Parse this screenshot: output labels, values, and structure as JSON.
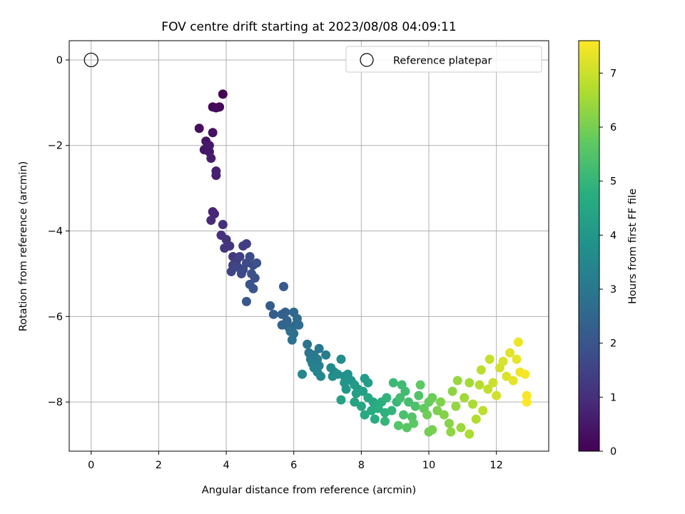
{
  "chart_data": {
    "type": "scatter",
    "title": "FOV centre drift starting at 2023/08/08 04:09:11",
    "xlabel": "Angular distance from reference (arcmin)",
    "ylabel": "Rotation from reference (arcmin)",
    "xlim": [
      -0.65,
      13.55
    ],
    "ylim": [
      -9.15,
      0.45
    ],
    "xticks": [
      "0",
      "2",
      "4",
      "6",
      "8",
      "10",
      "12"
    ],
    "yticks": [
      "0",
      "−2",
      "−4",
      "−6",
      "−8"
    ],
    "grid": true,
    "legend": {
      "position": "top-right",
      "entries": [
        "Reference platepar"
      ]
    },
    "reference_point": {
      "x": 0,
      "y": 0
    },
    "colorbar": {
      "label": "Hours from first FF file",
      "range": [
        0,
        7.6
      ],
      "ticks": [
        "0",
        "1",
        "2",
        "3",
        "4",
        "5",
        "6",
        "7"
      ],
      "colormap": "viridis"
    },
    "series": [
      {
        "points": [
          [
            3.9,
            -0.8,
            0.0
          ],
          [
            3.6,
            -1.1,
            0.1
          ],
          [
            3.8,
            -1.1,
            0.15
          ],
          [
            3.7,
            -1.12,
            0.2
          ],
          [
            3.2,
            -1.6,
            0.3
          ],
          [
            3.6,
            -1.7,
            0.35
          ],
          [
            3.4,
            -1.9,
            0.4
          ],
          [
            3.35,
            -2.1,
            0.45
          ],
          [
            3.5,
            -2.15,
            0.5
          ],
          [
            3.5,
            -2.0,
            0.55
          ],
          [
            3.55,
            -2.3,
            0.6
          ],
          [
            3.7,
            -2.6,
            0.65
          ],
          [
            3.7,
            -2.7,
            0.7
          ],
          [
            3.6,
            -3.55,
            0.8
          ],
          [
            3.65,
            -3.6,
            0.85
          ],
          [
            3.55,
            -3.75,
            0.9
          ],
          [
            3.9,
            -3.85,
            1.0
          ],
          [
            3.85,
            -4.1,
            1.05
          ],
          [
            4.0,
            -4.2,
            1.1
          ],
          [
            4.1,
            -4.35,
            1.15
          ],
          [
            3.95,
            -4.4,
            1.2
          ],
          [
            4.2,
            -4.6,
            1.25
          ],
          [
            4.3,
            -4.7,
            1.3
          ],
          [
            4.5,
            -4.35,
            1.35
          ],
          [
            4.6,
            -4.3,
            1.4
          ],
          [
            4.4,
            -4.6,
            1.45
          ],
          [
            4.2,
            -4.8,
            1.5
          ],
          [
            4.15,
            -4.95,
            1.55
          ],
          [
            4.35,
            -4.85,
            1.6
          ],
          [
            4.5,
            -4.9,
            1.65
          ],
          [
            4.45,
            -5.0,
            1.7
          ],
          [
            4.6,
            -4.75,
            1.72
          ],
          [
            4.7,
            -4.6,
            1.75
          ],
          [
            4.8,
            -4.8,
            1.8
          ],
          [
            4.9,
            -4.75,
            1.85
          ],
          [
            4.75,
            -5.0,
            1.88
          ],
          [
            4.85,
            -5.1,
            1.9
          ],
          [
            4.7,
            -5.25,
            1.95
          ],
          [
            4.8,
            -5.35,
            2.0
          ],
          [
            4.6,
            -5.65,
            2.05
          ],
          [
            5.7,
            -5.3,
            2.1
          ],
          [
            5.3,
            -5.75,
            2.2
          ],
          [
            5.4,
            -5.95,
            2.25
          ],
          [
            5.65,
            -5.95,
            2.3
          ],
          [
            5.75,
            -5.9,
            2.35
          ],
          [
            5.8,
            -6.1,
            2.4
          ],
          [
            5.65,
            -6.2,
            2.45
          ],
          [
            5.85,
            -6.25,
            2.5
          ],
          [
            6.0,
            -5.9,
            2.55
          ],
          [
            6.1,
            -6.05,
            2.6
          ],
          [
            6.05,
            -6.2,
            2.65
          ],
          [
            6.15,
            -6.2,
            2.7
          ],
          [
            5.9,
            -6.35,
            2.75
          ],
          [
            6.0,
            -6.4,
            2.8
          ],
          [
            5.95,
            -6.55,
            2.85
          ],
          [
            6.4,
            -6.65,
            2.9
          ],
          [
            6.45,
            -6.85,
            2.95
          ],
          [
            6.75,
            -6.75,
            3.0
          ],
          [
            6.6,
            -6.9,
            3.05
          ],
          [
            6.5,
            -7.0,
            3.1
          ],
          [
            6.7,
            -7.0,
            3.15
          ],
          [
            6.95,
            -6.9,
            3.2
          ],
          [
            6.55,
            -7.1,
            3.25
          ],
          [
            6.75,
            -7.15,
            3.3
          ],
          [
            6.6,
            -7.2,
            3.35
          ],
          [
            6.7,
            -7.3,
            3.4
          ],
          [
            6.25,
            -7.35,
            3.45
          ],
          [
            6.8,
            -7.4,
            3.5
          ],
          [
            7.1,
            -7.2,
            3.55
          ],
          [
            7.2,
            -7.3,
            3.6
          ],
          [
            7.4,
            -7.0,
            3.65
          ],
          [
            7.15,
            -7.4,
            3.7
          ],
          [
            7.3,
            -7.35,
            3.75
          ],
          [
            7.5,
            -7.4,
            3.8
          ],
          [
            7.6,
            -7.35,
            3.85
          ],
          [
            7.7,
            -7.5,
            3.9
          ],
          [
            7.5,
            -7.55,
            3.95
          ],
          [
            7.55,
            -7.7,
            4.0
          ],
          [
            7.8,
            -7.6,
            4.05
          ],
          [
            7.9,
            -7.7,
            4.1
          ],
          [
            8.1,
            -7.45,
            4.15
          ],
          [
            8.2,
            -7.55,
            4.2
          ],
          [
            7.85,
            -7.8,
            4.25
          ],
          [
            8.05,
            -7.75,
            4.3
          ],
          [
            7.4,
            -7.95,
            4.35
          ],
          [
            7.8,
            -8.0,
            4.4
          ],
          [
            8.0,
            -8.1,
            4.45
          ],
          [
            8.2,
            -7.9,
            4.5
          ],
          [
            8.35,
            -8.0,
            4.55
          ],
          [
            8.1,
            -8.3,
            4.6
          ],
          [
            8.3,
            -8.2,
            4.65
          ],
          [
            8.4,
            -8.4,
            4.7
          ],
          [
            8.5,
            -8.15,
            4.75
          ],
          [
            8.6,
            -8.0,
            4.8
          ],
          [
            8.7,
            -8.25,
            4.85
          ],
          [
            8.75,
            -7.9,
            4.9
          ],
          [
            8.9,
            -8.2,
            4.95
          ],
          [
            8.7,
            -8.45,
            5.0
          ],
          [
            9.05,
            -8.0,
            5.05
          ],
          [
            8.95,
            -7.55,
            5.1
          ],
          [
            9.2,
            -7.6,
            5.15
          ],
          [
            9.3,
            -7.75,
            5.2
          ],
          [
            9.15,
            -7.9,
            5.25
          ],
          [
            9.4,
            -8.0,
            5.3
          ],
          [
            9.25,
            -8.3,
            5.35
          ],
          [
            9.6,
            -8.1,
            5.4
          ],
          [
            9.7,
            -7.85,
            5.45
          ],
          [
            9.5,
            -8.35,
            5.5
          ],
          [
            9.1,
            -8.55,
            5.55
          ],
          [
            9.35,
            -8.6,
            5.6
          ],
          [
            9.55,
            -8.5,
            5.65
          ],
          [
            9.75,
            -7.6,
            5.7
          ],
          [
            9.85,
            -8.15,
            5.75
          ],
          [
            10.0,
            -8.0,
            5.8
          ],
          [
            10.1,
            -7.9,
            5.85
          ],
          [
            9.95,
            -8.3,
            5.9
          ],
          [
            10.0,
            -8.7,
            5.95
          ],
          [
            10.1,
            -8.65,
            6.0
          ],
          [
            10.25,
            -8.2,
            6.05
          ],
          [
            10.35,
            -8.0,
            6.1
          ],
          [
            10.45,
            -8.3,
            6.15
          ],
          [
            10.6,
            -8.5,
            6.2
          ],
          [
            10.7,
            -7.75,
            6.25
          ],
          [
            10.65,
            -8.7,
            6.3
          ],
          [
            10.8,
            -8.1,
            6.35
          ],
          [
            10.85,
            -7.5,
            6.4
          ],
          [
            10.95,
            -8.6,
            6.45
          ],
          [
            11.05,
            -7.9,
            6.5
          ],
          [
            11.2,
            -7.55,
            6.55
          ],
          [
            11.3,
            -8.05,
            6.6
          ],
          [
            11.2,
            -8.75,
            6.65
          ],
          [
            11.4,
            -8.4,
            6.7
          ],
          [
            11.5,
            -7.6,
            6.75
          ],
          [
            11.55,
            -7.25,
            6.8
          ],
          [
            11.6,
            -8.2,
            6.85
          ],
          [
            11.75,
            -7.7,
            6.9
          ],
          [
            11.8,
            -7.0,
            6.95
          ],
          [
            11.9,
            -7.55,
            7.0
          ],
          [
            12.0,
            -7.85,
            7.05
          ],
          [
            12.1,
            -7.2,
            7.1
          ],
          [
            12.2,
            -7.05,
            7.15
          ],
          [
            12.3,
            -7.4,
            7.2
          ],
          [
            12.4,
            -6.85,
            7.25
          ],
          [
            12.5,
            -7.5,
            7.3
          ],
          [
            12.6,
            -7.0,
            7.35
          ],
          [
            12.65,
            -6.6,
            7.4
          ],
          [
            12.7,
            -7.3,
            7.45
          ],
          [
            12.85,
            -7.35,
            7.5
          ],
          [
            12.9,
            -7.85,
            7.55
          ],
          [
            12.9,
            -8.0,
            7.58
          ]
        ]
      }
    ]
  }
}
